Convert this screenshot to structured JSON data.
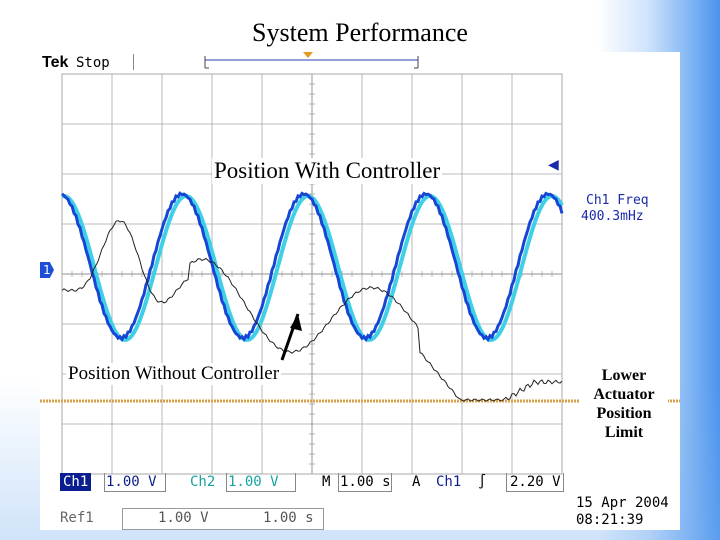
{
  "slide": {
    "title": "System Performance"
  },
  "scope": {
    "brand": "Tek",
    "run_state": "Stop",
    "annotations": {
      "with_controller": "Position With Controller",
      "without_controller": "Position Without Controller",
      "limit_lines": [
        "Lower",
        "Actuator",
        "Position",
        "Limit"
      ]
    },
    "measurement": {
      "title": "Ch1 Freq",
      "value": "400.3mHz"
    },
    "ch1_marker": "1",
    "status": {
      "ch1_label": "Ch1",
      "ch1_scale": "1.00 V",
      "ch2_label": "Ch2",
      "ch2_scale": "1.00 V",
      "time_label": "M",
      "time_scale": "1.00 s",
      "trigger_label": "A",
      "trigger_channel": "Ch1",
      "trigger_slope": "∫",
      "trigger_level": "2.20 V"
    },
    "reference": {
      "label": "Ref1",
      "scale_v": "1.00 V",
      "scale_s": "1.00 s"
    },
    "date": "15 Apr  2004",
    "time": "08:21:39",
    "colors": {
      "ch1_trace": "#1646d4",
      "ch2_trace": "#3fd0e8",
      "uncontrolled_trace": "#222222",
      "limit_line": "#d9a24a",
      "grid": "#a8a8a8"
    }
  }
}
